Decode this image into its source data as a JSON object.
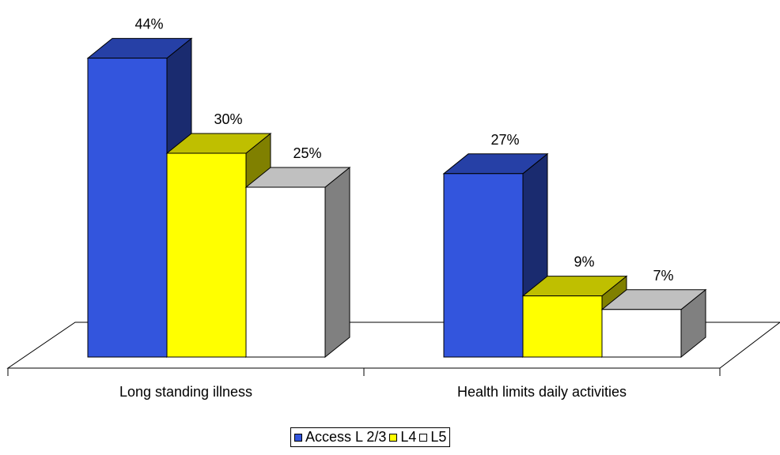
{
  "chart_data": {
    "type": "bar",
    "categories": [
      "Long standing illness",
      "Health limits daily activities"
    ],
    "series": [
      {
        "name": "Access L 2/3",
        "values": [
          44,
          27
        ],
        "color": "#3355dd"
      },
      {
        "name": "L4",
        "values": [
          30,
          9
        ],
        "color": "#ffff00"
      },
      {
        "name": "L5",
        "values": [
          25,
          7
        ],
        "color": "#ffffff"
      }
    ],
    "data_labels": [
      [
        "44%",
        "27%"
      ],
      [
        "30%",
        "9%"
      ],
      [
        "25%",
        "7%"
      ]
    ],
    "value_suffix": "%",
    "title": "",
    "xlabel": "",
    "ylabel": "",
    "ylim": [
      0,
      50
    ],
    "three_d": true,
    "grid": false,
    "legend_position": "bottom"
  }
}
